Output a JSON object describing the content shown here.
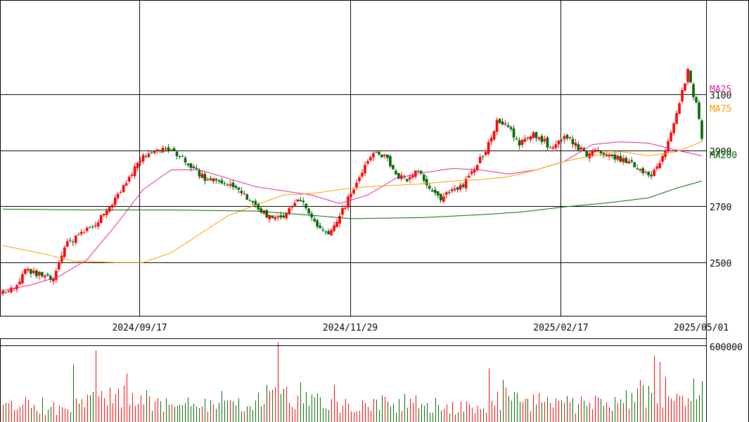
{
  "chart_data": {
    "type": "candlestick",
    "x_axis": {
      "tick_labels": [
        "2024/09/17",
        "2024/11/29",
        "2025/02/17",
        "2025/05/01"
      ],
      "tick_bar_index": [
        49,
        124,
        199,
        249
      ],
      "bar_count": 250
    },
    "price_axis": {
      "range": [
        2310,
        3435
      ],
      "tick_values": [
        2500,
        2700,
        2900,
        3100
      ],
      "tick_labels": [
        "2500",
        "2700",
        "2900",
        "3100"
      ],
      "grid": true
    },
    "volume_axis": {
      "range": [
        0,
        650000
      ],
      "tick_values": [
        600000
      ],
      "tick_labels": [
        "600000"
      ]
    },
    "colors": {
      "up": "#ff0000",
      "down": "#006600",
      "ma25": "#e0249a",
      "ma75": "#ff9900",
      "ma200": "#006600",
      "grid": "#000000",
      "background": "#ffffff"
    },
    "series": [
      {
        "name": "MA25",
        "label": "MA25",
        "color": "#e0249a",
        "points": [
          [
            0,
            2400
          ],
          [
            10,
            2420
          ],
          [
            20,
            2450
          ],
          [
            30,
            2510
          ],
          [
            40,
            2630
          ],
          [
            50,
            2760
          ],
          [
            60,
            2830
          ],
          [
            70,
            2830
          ],
          [
            80,
            2800
          ],
          [
            90,
            2770
          ],
          [
            100,
            2755
          ],
          [
            110,
            2740
          ],
          [
            120,
            2710
          ],
          [
            130,
            2740
          ],
          [
            140,
            2800
          ],
          [
            150,
            2820
          ],
          [
            160,
            2835
          ],
          [
            170,
            2830
          ],
          [
            180,
            2815
          ],
          [
            190,
            2830
          ],
          [
            200,
            2860
          ],
          [
            210,
            2920
          ],
          [
            220,
            2930
          ],
          [
            230,
            2925
          ],
          [
            240,
            2900
          ],
          [
            249,
            2880
          ]
        ]
      },
      {
        "name": "MA75",
        "label": "MA75",
        "color": "#ff9900",
        "points": [
          [
            0,
            2560
          ],
          [
            15,
            2530
          ],
          [
            25,
            2505
          ],
          [
            40,
            2500
          ],
          [
            50,
            2500
          ],
          [
            60,
            2535
          ],
          [
            70,
            2600
          ],
          [
            80,
            2665
          ],
          [
            90,
            2705
          ],
          [
            100,
            2740
          ],
          [
            110,
            2745
          ],
          [
            120,
            2760
          ],
          [
            130,
            2770
          ],
          [
            140,
            2775
          ],
          [
            150,
            2780
          ],
          [
            160,
            2790
          ],
          [
            170,
            2795
          ],
          [
            180,
            2805
          ],
          [
            190,
            2830
          ],
          [
            200,
            2860
          ],
          [
            210,
            2880
          ],
          [
            220,
            2895
          ],
          [
            230,
            2880
          ],
          [
            240,
            2895
          ],
          [
            249,
            2930
          ]
        ]
      },
      {
        "name": "MA200",
        "label": "MA200",
        "color": "#006600",
        "points": [
          [
            0,
            2690
          ],
          [
            30,
            2687
          ],
          [
            60,
            2687
          ],
          [
            90,
            2683
          ],
          [
            110,
            2668
          ],
          [
            124,
            2656
          ],
          [
            150,
            2660
          ],
          [
            170,
            2670
          ],
          [
            185,
            2680
          ],
          [
            200,
            2698
          ],
          [
            215,
            2712
          ],
          [
            230,
            2730
          ],
          [
            240,
            2765
          ],
          [
            249,
            2790
          ]
        ]
      }
    ],
    "price_path": [
      [
        0,
        2390
      ],
      [
        5,
        2420
      ],
      [
        8,
        2480
      ],
      [
        12,
        2460
      ],
      [
        18,
        2440
      ],
      [
        22,
        2560
      ],
      [
        28,
        2600
      ],
      [
        35,
        2660
      ],
      [
        40,
        2720
      ],
      [
        45,
        2800
      ],
      [
        50,
        2880
      ],
      [
        55,
        2910
      ],
      [
        60,
        2900
      ],
      [
        64,
        2870
      ],
      [
        68,
        2830
      ],
      [
        72,
        2800
      ],
      [
        78,
        2780
      ],
      [
        84,
        2760
      ],
      [
        88,
        2720
      ],
      [
        92,
        2680
      ],
      [
        96,
        2660
      ],
      [
        100,
        2650
      ],
      [
        104,
        2720
      ],
      [
        108,
        2700
      ],
      [
        112,
        2630
      ],
      [
        116,
        2610
      ],
      [
        120,
        2660
      ],
      [
        124,
        2750
      ],
      [
        128,
        2820
      ],
      [
        132,
        2900
      ],
      [
        136,
        2880
      ],
      [
        140,
        2810
      ],
      [
        144,
        2800
      ],
      [
        148,
        2830
      ],
      [
        152,
        2770
      ],
      [
        156,
        2730
      ],
      [
        160,
        2760
      ],
      [
        164,
        2780
      ],
      [
        168,
        2840
      ],
      [
        172,
        2900
      ],
      [
        176,
        3000
      ],
      [
        180,
        2980
      ],
      [
        184,
        2920
      ],
      [
        188,
        2960
      ],
      [
        192,
        2940
      ],
      [
        196,
        2900
      ],
      [
        200,
        2960
      ],
      [
        204,
        2920
      ],
      [
        208,
        2880
      ],
      [
        212,
        2900
      ],
      [
        216,
        2880
      ],
      [
        220,
        2870
      ],
      [
        224,
        2860
      ],
      [
        228,
        2810
      ],
      [
        232,
        2820
      ],
      [
        236,
        2900
      ],
      [
        240,
        3040
      ],
      [
        244,
        3180
      ],
      [
        247,
        3060
      ],
      [
        249,
        2950
      ]
    ],
    "volume_path": [
      [
        0,
        120000
      ],
      [
        10,
        140000
      ],
      [
        20,
        100000
      ],
      [
        30,
        160000
      ],
      [
        40,
        200000
      ],
      [
        50,
        170000
      ],
      [
        60,
        130000
      ],
      [
        70,
        150000
      ],
      [
        80,
        160000
      ],
      [
        90,
        140000
      ],
      [
        98,
        300000
      ],
      [
        105,
        160000
      ],
      [
        115,
        140000
      ],
      [
        124,
        120000
      ],
      [
        135,
        150000
      ],
      [
        150,
        140000
      ],
      [
        165,
        110000
      ],
      [
        175,
        160000
      ],
      [
        180,
        190000
      ],
      [
        190,
        150000
      ],
      [
        200,
        140000
      ],
      [
        215,
        150000
      ],
      [
        225,
        200000
      ],
      [
        232,
        280000
      ],
      [
        238,
        160000
      ],
      [
        245,
        150000
      ],
      [
        249,
        200000
      ]
    ],
    "volume_peaks": [
      [
        25,
        450000
      ],
      [
        33,
        560000
      ],
      [
        44,
        380000
      ],
      [
        98,
        625000
      ],
      [
        106,
        310000
      ],
      [
        118,
        290000
      ],
      [
        173,
        420000
      ],
      [
        178,
        330000
      ],
      [
        232,
        520000
      ],
      [
        234,
        470000
      ],
      [
        236,
        350000
      ],
      [
        246,
        340000
      ],
      [
        249,
        320000
      ]
    ],
    "candle_shape": {
      "seed": 20250501,
      "body_vol": 22,
      "wick_vol": 14
    }
  }
}
